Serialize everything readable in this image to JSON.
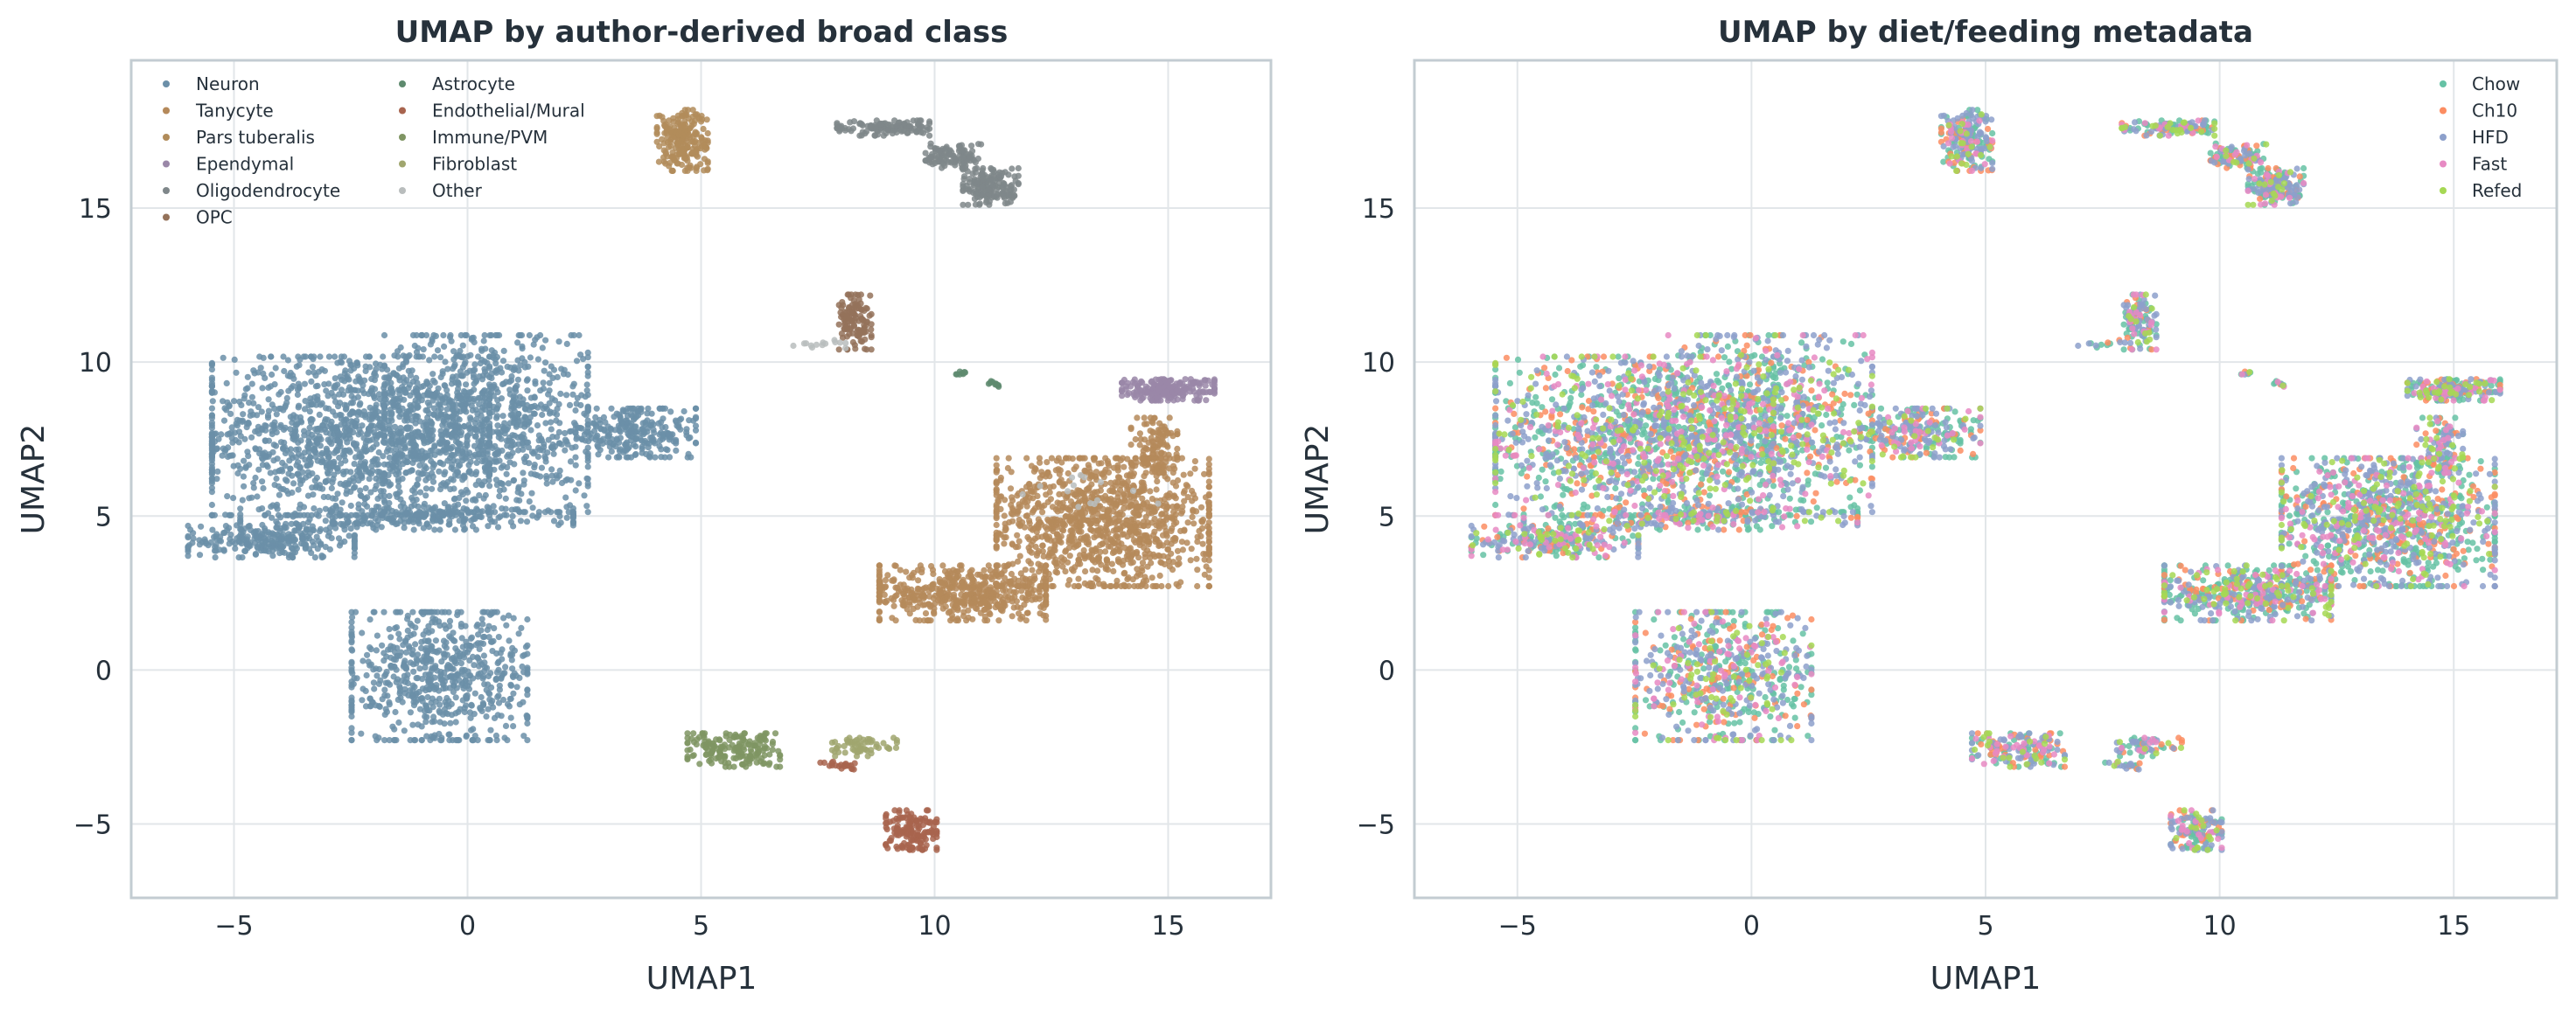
{
  "chart_data": [
    {
      "type": "scatter",
      "title": "UMAP by author-derived broad class",
      "xlabel": "UMAP1",
      "ylabel": "UMAP2",
      "xlim": [
        -7.2,
        17.2
      ],
      "ylim": [
        -7.4,
        19.8
      ],
      "xticks": [
        -5,
        0,
        5,
        10,
        15
      ],
      "xtick_labels": [
        "−5",
        "0",
        "5",
        "10",
        "15"
      ],
      "yticks": [
        -5,
        0,
        5,
        10,
        15
      ],
      "ytick_labels": [
        "−5",
        "0",
        "5",
        "10",
        "15"
      ],
      "grid": true,
      "legend_position": "top-left",
      "legend_columns": 2,
      "series": [
        {
          "name": "Neuron",
          "color": "#6b8fa8",
          "clusters": [
            {
              "cx": -2.5,
              "cy": 7.6,
              "rx": 3.0,
              "ry": 2.6,
              "n": 1300
            },
            {
              "cx": 0.4,
              "cy": 8.0,
              "rx": 2.2,
              "ry": 2.9,
              "n": 900
            },
            {
              "cx": -4.2,
              "cy": 4.2,
              "rx": 1.8,
              "ry": 0.55,
              "n": 260
            },
            {
              "cx": -1.3,
              "cy": 4.9,
              "rx": 3.6,
              "ry": 0.35,
              "n": 220
            },
            {
              "cx": 3.6,
              "cy": 7.7,
              "rx": 1.3,
              "ry": 0.8,
              "n": 260
            },
            {
              "cx": -0.6,
              "cy": -0.2,
              "rx": 1.9,
              "ry": 2.1,
              "n": 650
            }
          ]
        },
        {
          "name": "Tanycyte",
          "color": "#b5895a",
          "clusters": [
            {
              "cx": 13.6,
              "cy": 4.8,
              "rx": 2.3,
              "ry": 2.1,
              "n": 1100
            },
            {
              "cx": 10.6,
              "cy": 2.5,
              "rx": 1.8,
              "ry": 0.9,
              "n": 500
            },
            {
              "cx": 14.7,
              "cy": 7.3,
              "rx": 0.5,
              "ry": 0.9,
              "n": 120
            }
          ]
        },
        {
          "name": "Pars tuberalis",
          "color": "#b18c5a",
          "clusters": [
            {
              "cx": 4.6,
              "cy": 17.2,
              "rx": 0.55,
              "ry": 1.0,
              "n": 220
            }
          ]
        },
        {
          "name": "Ependymal",
          "color": "#9a87a8",
          "clusters": [
            {
              "cx": 15.0,
              "cy": 9.1,
              "rx": 1.0,
              "ry": 0.35,
              "n": 220
            }
          ]
        },
        {
          "name": "Oligodendrocyte",
          "color": "#7f878a",
          "clusters": [
            {
              "cx": 8.9,
              "cy": 17.6,
              "rx": 1.0,
              "ry": 0.25,
              "n": 120
            },
            {
              "cx": 10.4,
              "cy": 16.7,
              "rx": 0.6,
              "ry": 0.4,
              "n": 100
            },
            {
              "cx": 11.2,
              "cy": 15.7,
              "rx": 0.6,
              "ry": 0.6,
              "n": 170
            }
          ]
        },
        {
          "name": "OPC",
          "color": "#94725a",
          "clusters": [
            {
              "cx": 8.3,
              "cy": 11.3,
              "rx": 0.35,
              "ry": 0.9,
              "n": 120
            }
          ]
        },
        {
          "name": "Astrocyte",
          "color": "#5e8a6e",
          "clusters": [
            {
              "cx": 10.6,
              "cy": 9.6,
              "rx": 0.15,
              "ry": 0.1,
              "n": 8
            },
            {
              "cx": 11.3,
              "cy": 9.3,
              "rx": 0.25,
              "ry": 0.1,
              "n": 10
            }
          ]
        },
        {
          "name": "Endothelial/Mural",
          "color": "#a8644e",
          "clusters": [
            {
              "cx": 9.5,
              "cy": -5.2,
              "rx": 0.55,
              "ry": 0.65,
              "n": 140
            },
            {
              "cx": 8.0,
              "cy": -3.1,
              "rx": 0.45,
              "ry": 0.15,
              "n": 20
            }
          ]
        },
        {
          "name": "Immune/PVM",
          "color": "#7f9563",
          "clusters": [
            {
              "cx": 5.7,
              "cy": -2.6,
              "rx": 1.0,
              "ry": 0.55,
              "n": 180
            }
          ]
        },
        {
          "name": "Fibroblast",
          "color": "#a0a66e",
          "clusters": [
            {
              "cx": 8.5,
              "cy": -2.5,
              "rx": 0.7,
              "ry": 0.3,
              "n": 60
            }
          ]
        },
        {
          "name": "Other",
          "color": "#b9bdbd",
          "clusters": [
            {
              "cx": 7.5,
              "cy": 10.6,
              "rx": 0.6,
              "ry": 0.15,
              "n": 14
            },
            {
              "cx": 13.2,
              "cy": 5.8,
              "rx": 1.6,
              "ry": 0.9,
              "n": 14
            }
          ]
        }
      ]
    },
    {
      "type": "scatter",
      "title": "UMAP by diet/feeding metadata",
      "xlabel": "UMAP1",
      "ylabel": "UMAP2",
      "xlim": [
        -7.2,
        17.2
      ],
      "ylim": [
        -7.4,
        19.8
      ],
      "xticks": [
        -5,
        0,
        5,
        10,
        15
      ],
      "xtick_labels": [
        "−5",
        "0",
        "5",
        "10",
        "15"
      ],
      "yticks": [
        -5,
        0,
        5,
        10,
        15
      ],
      "ytick_labels": [
        "−5",
        "0",
        "5",
        "10",
        "15"
      ],
      "grid": true,
      "legend_position": "top-right",
      "legend_columns": 1,
      "series": [
        {
          "name": "Chow",
          "color": "#66c2a5"
        },
        {
          "name": "Ch10",
          "color": "#fc8d62"
        },
        {
          "name": "HFD",
          "color": "#8da0cb"
        },
        {
          "name": "Fast",
          "color": "#e78ac3"
        },
        {
          "name": "Refed",
          "color": "#a6d854"
        }
      ],
      "mixing_note_weights": {
        "Chow": 0.34,
        "Ch10": 0.16,
        "HFD": 0.28,
        "Fast": 0.12,
        "Refed": 0.1
      }
    }
  ]
}
